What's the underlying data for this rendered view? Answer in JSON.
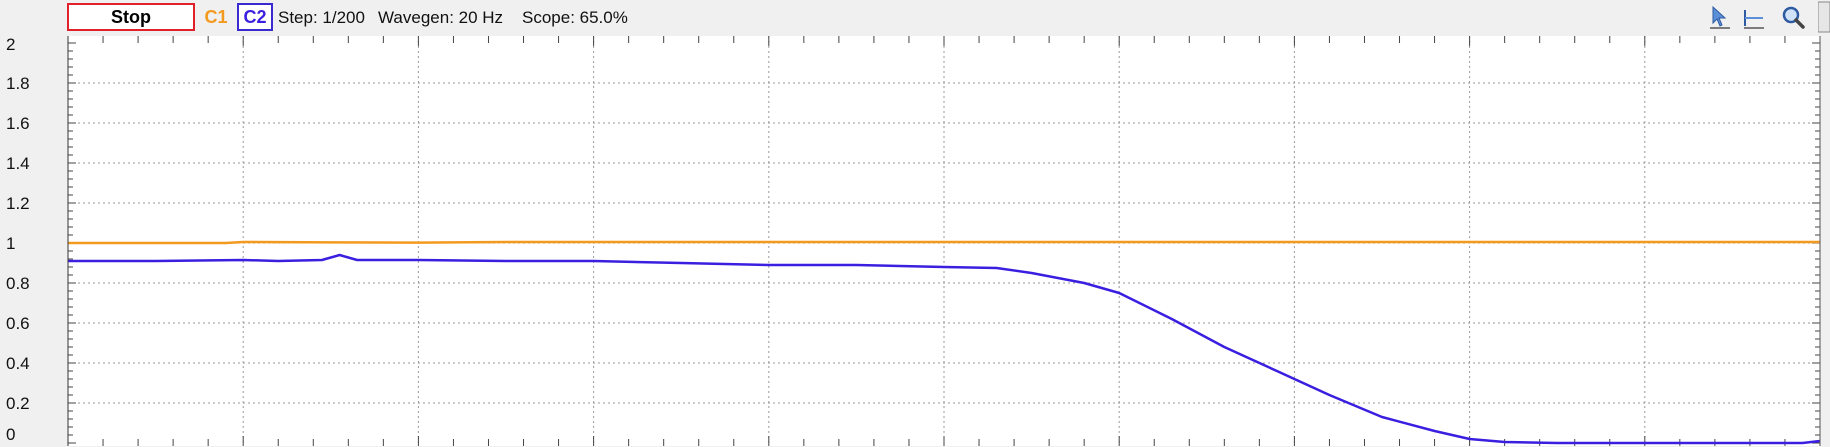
{
  "toolbar": {
    "stop_label": "Stop",
    "channel1_label": "C1",
    "channel2_label": "C2",
    "step_text": "Step: 1/200",
    "wavegen_text": "Wavegen: 20 Hz",
    "scope_text": "Scope: 65.0%",
    "icons": [
      "cursor-arrow-icon",
      "horizontal-cursor-icon",
      "zoom-icon"
    ]
  },
  "colors": {
    "c1": "#f39a1e",
    "c2": "#3a1fe0",
    "stop_border": "#e0202a",
    "grid": "#9a9a9a",
    "plot_bg": "#ffffff"
  },
  "chart_data": {
    "type": "line",
    "title": "",
    "xlabel": "",
    "ylabel": "",
    "xlim": [
      0,
      10
    ],
    "ylim": [
      0,
      2
    ],
    "y_ticks": [
      "2",
      "1.8",
      "1.6",
      "1.4",
      "1.2",
      "1",
      "0.8",
      "0.6",
      "0.4",
      "0.2",
      "0"
    ],
    "grid": true,
    "series": [
      {
        "name": "C1",
        "color": "#f39a1e",
        "x": [
          0,
          0.9,
          1.0,
          1.5,
          2.0,
          2.5,
          3.0,
          4.0,
          5.0,
          6.0,
          7.0,
          8.0,
          9.0,
          10.0
        ],
        "y": [
          1.0,
          1.0,
          1.005,
          1.003,
          1.002,
          1.005,
          1.005,
          1.005,
          1.005,
          1.005,
          1.005,
          1.005,
          1.005,
          1.005
        ]
      },
      {
        "name": "C2",
        "color": "#3a1fe0",
        "x": [
          0,
          0.5,
          1.0,
          1.2,
          1.45,
          1.55,
          1.65,
          2.0,
          2.5,
          3.0,
          3.5,
          4.0,
          4.5,
          5.0,
          5.3,
          5.5,
          5.8,
          6.0,
          6.3,
          6.6,
          6.9,
          7.2,
          7.5,
          7.8,
          8.0,
          8.2,
          8.5,
          9.0,
          9.5,
          9.9,
          10.0
        ],
        "y": [
          0.91,
          0.91,
          0.915,
          0.91,
          0.915,
          0.94,
          0.915,
          0.915,
          0.91,
          0.91,
          0.9,
          0.89,
          0.89,
          0.88,
          0.875,
          0.85,
          0.8,
          0.75,
          0.62,
          0.48,
          0.36,
          0.24,
          0.13,
          0.06,
          0.02,
          0.005,
          0.0,
          0.0,
          0.0,
          0.0,
          0.01
        ]
      }
    ]
  }
}
